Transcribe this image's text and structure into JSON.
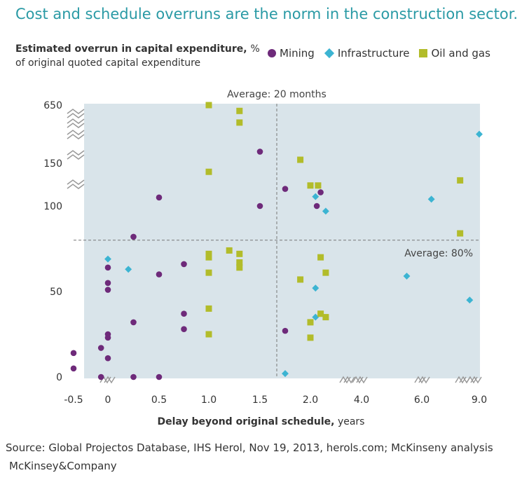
{
  "title": "Cost and schedule overruns are the norm in the construction sector.",
  "y_label_bold": "Estimated overrun in capital expenditure,",
  "y_label_unit": "%",
  "y_label_sub": "of original quoted capital expenditure",
  "x_label_bold": "Delay beyond original schedule,",
  "x_label_unit": "years",
  "source": "Source: Global Projectos Database, IHS Herol, Nov 19, 2013, herols.com; McKinseny analysis",
  "brand": "McKinsey&Company",
  "avg_x_label": "Average: 20 months",
  "avg_y_label": "Average: 80%",
  "colors": {
    "Mining": "#6e2a7a",
    "Infrastructure": "#3cb4d2",
    "Oil and gas": "#b2bc2a",
    "plot_bg": "#d9e4ea",
    "title": "#2a9aa5"
  },
  "chart_data": {
    "type": "scatter",
    "title": "Cost and schedule overruns are the norm in the construction sector.",
    "xlabel": "Delay beyond original schedule, years",
    "ylabel": "Estimated overrun in capital expenditure, % of original quoted capital expenditure",
    "x_ticks": [
      "-0.5",
      "0",
      "0.5",
      "1.0",
      "1.5",
      "2.0",
      "4.0",
      "6.0",
      "9.0"
    ],
    "y_ticks": [
      "0",
      "50",
      "100",
      "150",
      "650"
    ],
    "x_axis_breaks": "broken between 2.0–4.0, 4.0–6.0 and 6.0–9.0",
    "y_axis_breaks": "broken between 100–150 and 150–650",
    "average_x_months": 20,
    "average_y_percent": 80,
    "legend": [
      "Mining",
      "Infrastructure",
      "Oil and gas"
    ],
    "legend_position": "top",
    "grid": false,
    "series": [
      {
        "name": "Mining",
        "marker": "circle",
        "points": [
          [
            -0.5,
            5
          ],
          [
            -0.5,
            14
          ],
          [
            -0.1,
            17
          ],
          [
            -0.1,
            0
          ],
          [
            0,
            11
          ],
          [
            0,
            23
          ],
          [
            0,
            25
          ],
          [
            0,
            51
          ],
          [
            0,
            55
          ],
          [
            0,
            64
          ],
          [
            0.25,
            32
          ],
          [
            0.25,
            82
          ],
          [
            0.25,
            0
          ],
          [
            0.5,
            0
          ],
          [
            0.5,
            60
          ],
          [
            0.5,
            110
          ],
          [
            0.75,
            28
          ],
          [
            0.75,
            37
          ],
          [
            0.75,
            66
          ],
          [
            1.5,
            100
          ],
          [
            1.5,
            250
          ],
          [
            1.75,
            27
          ],
          [
            1.75,
            120
          ],
          [
            2.25,
            100
          ],
          [
            2.4,
            116
          ]
        ]
      },
      {
        "name": "Infrastructure",
        "marker": "diamond",
        "points": [
          [
            0,
            69
          ],
          [
            0.2,
            63
          ],
          [
            1.75,
            2
          ],
          [
            2.2,
            52
          ],
          [
            2.2,
            35
          ],
          [
            2.2,
            111
          ],
          [
            2.6,
            97
          ],
          [
            5.5,
            59
          ],
          [
            6.5,
            108
          ],
          [
            8.5,
            45
          ],
          [
            9.0,
            400
          ]
        ]
      },
      {
        "name": "Oil and gas",
        "marker": "square",
        "points": [
          [
            1.0,
            650
          ],
          [
            1.0,
            140
          ],
          [
            1.0,
            25
          ],
          [
            1.0,
            40
          ],
          [
            1.0,
            61
          ],
          [
            1.0,
            70
          ],
          [
            1.0,
            72
          ],
          [
            1.2,
            74
          ],
          [
            1.3,
            600
          ],
          [
            1.3,
            500
          ],
          [
            1.3,
            72
          ],
          [
            1.3,
            67
          ],
          [
            1.3,
            64
          ],
          [
            1.9,
            180
          ],
          [
            1.9,
            57
          ],
          [
            2.0,
            124
          ],
          [
            2.0,
            23
          ],
          [
            2.0,
            32
          ],
          [
            2.3,
            124
          ],
          [
            2.4,
            70
          ],
          [
            2.4,
            37
          ],
          [
            2.6,
            35
          ],
          [
            2.6,
            61
          ],
          [
            8.0,
            130
          ],
          [
            8.0,
            84
          ]
        ]
      }
    ]
  }
}
